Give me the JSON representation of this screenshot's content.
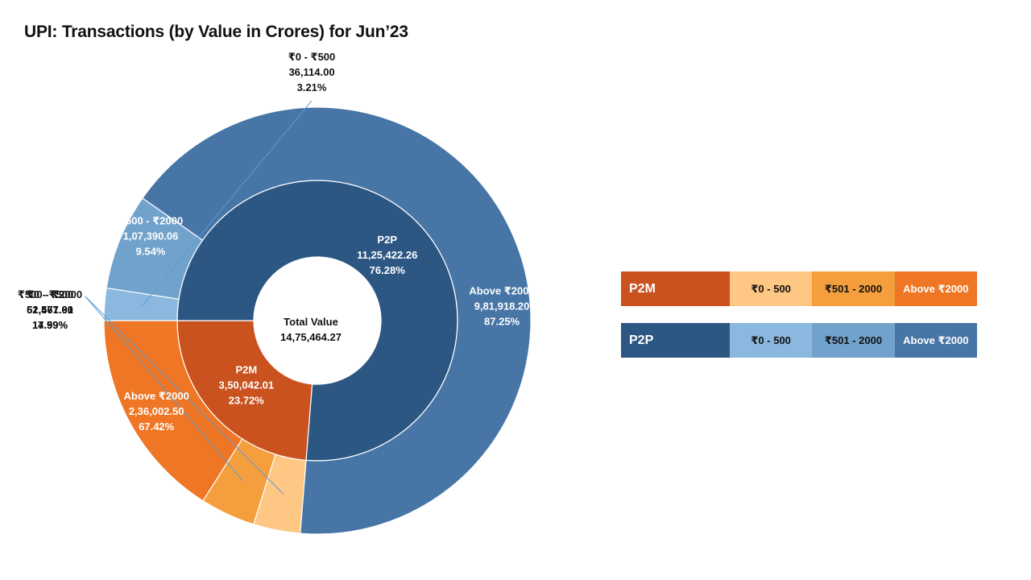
{
  "title": "UPI: Transactions (by Value in Crores) for Jun’23",
  "chart_data": {
    "type": "sunburst",
    "title": "UPI: Transactions (by Value in Crores) for Jun’23",
    "center": {
      "label": "Total Value",
      "value": "14,75,464.27",
      "total": 1475464.27
    },
    "inner": [
      {
        "name": "P2M",
        "value": 350042.01,
        "value_text": "3,50,042.01",
        "percent": "23.72%",
        "color": "#C9521F"
      },
      {
        "name": "P2P",
        "value": 1125422.26,
        "value_text": "11,25,422.26",
        "percent": "76.28%",
        "color": "#2C5783"
      }
    ],
    "outer": [
      {
        "parent": "P2M",
        "name": "₹0 - ₹500",
        "value": 52471.9,
        "value_text": "52,471.90",
        "percent": "14.99%",
        "color": "#FEC784"
      },
      {
        "parent": "P2M",
        "name": "₹500 - ₹2000",
        "value": 61567.61,
        "value_text": "61,567.61",
        "percent": "17.59%",
        "color": "#F59E3D"
      },
      {
        "parent": "P2M",
        "name": "Above ₹2000",
        "value": 236002.5,
        "value_text": "2,36,002.50",
        "percent": "67.42%",
        "color": "#EE7624"
      },
      {
        "parent": "P2P",
        "name": "₹0 - ₹500",
        "value": 36114.0,
        "value_text": "36,114.00",
        "percent": "3.21%",
        "color": "#8AB8DE"
      },
      {
        "parent": "P2P",
        "name": "₹500 - ₹2000",
        "value": 107390.06,
        "value_text": "1,07,390.06",
        "percent": "9.54%",
        "color": "#71A2CB"
      },
      {
        "parent": "P2P",
        "name": "Above ₹2000",
        "value": 981918.2,
        "value_text": "9,81,918.20",
        "percent": "87.25%",
        "color": "#4675A6"
      }
    ]
  },
  "legend": {
    "p2m": {
      "label": "P2M",
      "color": "#C9521F",
      "cells": [
        {
          "text": "₹0 - 500",
          "color": "#FEC784",
          "text_color": "#111111"
        },
        {
          "text": "₹501 - 2000",
          "color": "#F59E3D",
          "text_color": "#111111"
        },
        {
          "text": "Above ₹2000",
          "color": "#EE7624",
          "text_color": "#ffffff"
        }
      ]
    },
    "p2p": {
      "label": "P2P",
      "color": "#2C5783",
      "cells": [
        {
          "text": "₹0 - 500",
          "color": "#8AB8DE",
          "text_color": "#111111"
        },
        {
          "text": "₹501 - 2000",
          "color": "#71A2CB",
          "text_color": "#111111"
        },
        {
          "text": "Above ₹2000",
          "color": "#4675A6",
          "text_color": "#ffffff"
        }
      ]
    }
  }
}
